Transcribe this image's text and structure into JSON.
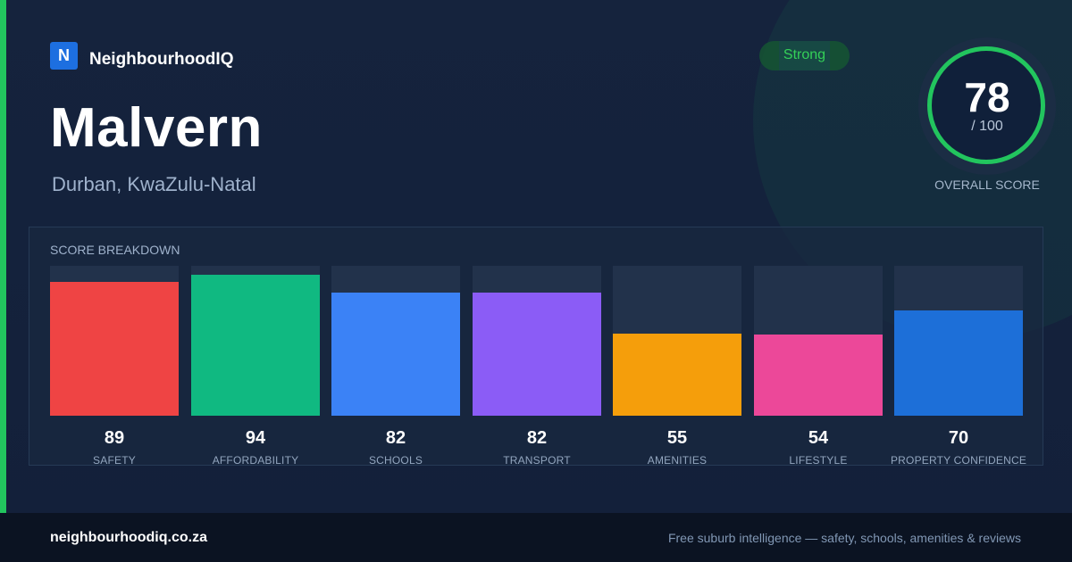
{
  "brand": {
    "logo_letter": "N",
    "name": "NeighbourhoodIQ"
  },
  "suburb": {
    "name": "Malvern",
    "location": "Durban, KwaZulu-Natal"
  },
  "rating_pill": "Strong",
  "overall": {
    "score": "78",
    "max": "/ 100",
    "label": "OVERALL SCORE",
    "ring_color": "#22c55e"
  },
  "breakdown": {
    "title": "SCORE BREAKDOWN"
  },
  "chart_data": {
    "type": "bar",
    "ylim": [
      0,
      100
    ],
    "categories": [
      "SAFETY",
      "AFFORDABILITY",
      "SCHOOLS",
      "TRANSPORT",
      "AMENITIES",
      "LIFESTYLE",
      "PROPERTY CONFIDENCE"
    ],
    "values": [
      89,
      94,
      82,
      82,
      55,
      54,
      70
    ],
    "colors": [
      "#ef4444",
      "#10b981",
      "#3b82f6",
      "#8b5cf6",
      "#f59e0b",
      "#ec4899",
      "#1d6fd8"
    ]
  },
  "footer": {
    "site": "neighbourhoodiq.co.za",
    "tagline": "Free suburb intelligence — safety, schools, amenities & reviews"
  },
  "colors": {
    "accent": "#22c55e",
    "brand_blue": "#1d6fe0"
  }
}
